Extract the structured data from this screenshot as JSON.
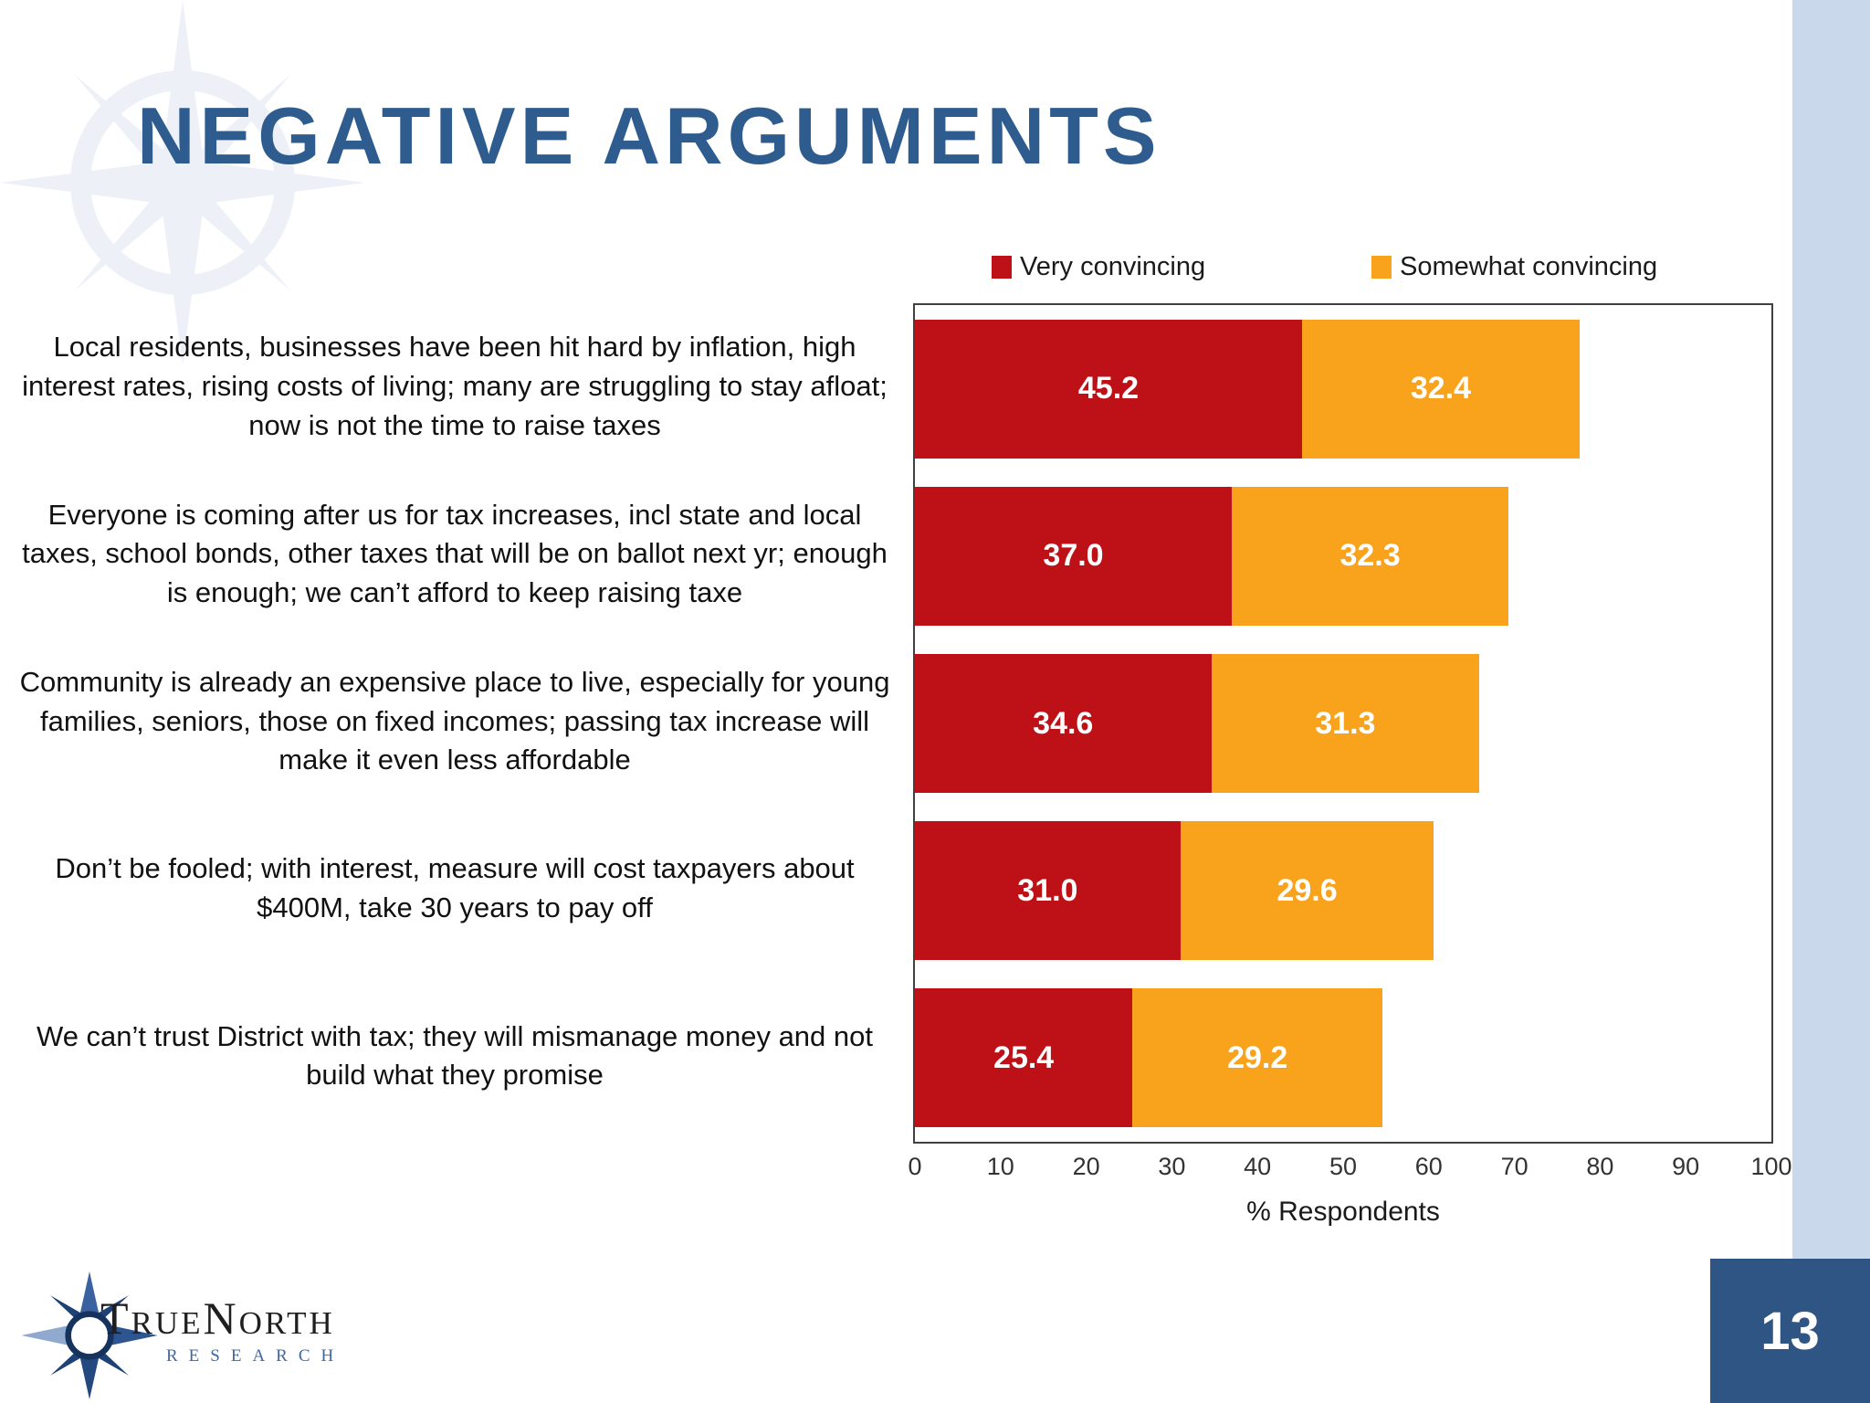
{
  "slide": {
    "title": "NEGATIVE ARGUMENTS",
    "page_number": "13",
    "logo": {
      "name": "TrueNorth",
      "subtitle": "RESEARCH"
    }
  },
  "colors": {
    "title": "#2E5C8F",
    "page_box": "#2E5584",
    "side_stripe": "#C9D8EB",
    "frame_border": "#404040",
    "value_label": "#FFFFFF",
    "watermark": "#EDF1F7"
  },
  "chart_data": {
    "type": "bar",
    "orientation": "horizontal",
    "stacked": true,
    "grid": false,
    "legend_position": "top",
    "xlabel": "% Respondents",
    "xlim": [
      0,
      100
    ],
    "xticks": [
      0,
      10,
      20,
      30,
      40,
      50,
      60,
      70,
      80,
      90,
      100
    ],
    "categories": [
      "Local residents, businesses have been hit hard by inflation, high interest rates, rising costs of living; many are struggling to stay afloat; now is not the time to raise taxes",
      "Everyone is coming after us for tax increases,  incl state and local taxes, school bonds, other taxes that will be on ballot next yr; enough is enough; we can’t afford to keep raising taxe",
      "Community is already an expensive place to live, especially for young families, seniors, those on fixed incomes; passing tax increase will make it even less affordable",
      "Don’t be fooled; with interest, measure will cost taxpayers about $400M, take 30 years to pay off",
      "We can’t trust District with tax; they will mismanage money and not build what they promise"
    ],
    "series": [
      {
        "name": "Very convincing",
        "color": "#BE1117",
        "values": [
          45.2,
          37.0,
          34.6,
          31.0,
          25.4
        ]
      },
      {
        "name": "Somewhat convincing",
        "color": "#F9A21C",
        "values": [
          32.4,
          32.3,
          31.3,
          29.6,
          29.2
        ]
      }
    ]
  }
}
